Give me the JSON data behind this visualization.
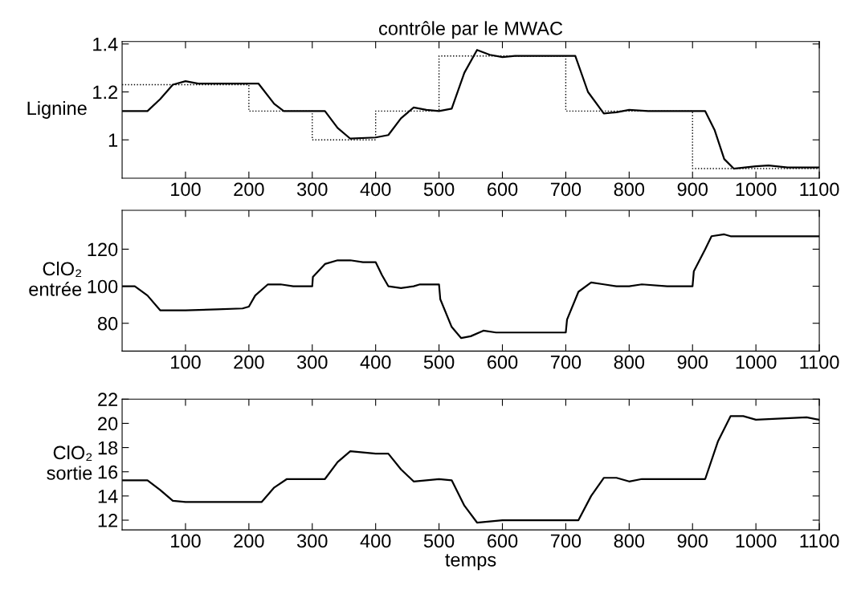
{
  "chart_data": [
    {
      "type": "line",
      "title": "contrôle par le MWAC",
      "ylabel": "Lignine",
      "xlim": [
        0,
        1100
      ],
      "xticks": [
        100,
        200,
        300,
        400,
        500,
        600,
        700,
        800,
        900,
        1000,
        1100
      ],
      "ylim": [
        0.84,
        1.41
      ],
      "yticks": [
        1,
        1.2,
        1.4
      ],
      "grid": false,
      "legend": false,
      "series": [
        {
          "color": "#000000",
          "line_style": "solid",
          "x": [
            0,
            40,
            60,
            80,
            100,
            120,
            200,
            215,
            240,
            255,
            280,
            320,
            340,
            360,
            400,
            420,
            440,
            460,
            480,
            500,
            520,
            540,
            560,
            580,
            600,
            620,
            700,
            715,
            735,
            760,
            780,
            800,
            830,
            900,
            920,
            935,
            950,
            965,
            1000,
            1020,
            1050,
            1100
          ],
          "values": [
            1.12,
            1.12,
            1.17,
            1.23,
            1.245,
            1.235,
            1.235,
            1.235,
            1.15,
            1.12,
            1.12,
            1.12,
            1.05,
            1.005,
            1.01,
            1.02,
            1.09,
            1.135,
            1.125,
            1.12,
            1.13,
            1.28,
            1.375,
            1.355,
            1.345,
            1.35,
            1.35,
            1.35,
            1.2,
            1.11,
            1.115,
            1.125,
            1.12,
            1.12,
            1.12,
            1.04,
            0.92,
            0.88,
            0.89,
            0.893,
            0.885,
            0.885
          ]
        },
        {
          "color": "#000000",
          "line_style": "dotted",
          "x": [
            0,
            200,
            200,
            300,
            300,
            400,
            400,
            500,
            500,
            700,
            700,
            900,
            900,
            1100
          ],
          "values": [
            1.23,
            1.23,
            1.12,
            1.12,
            1.0,
            1.0,
            1.12,
            1.12,
            1.35,
            1.35,
            1.12,
            1.12,
            0.88,
            0.88
          ]
        }
      ]
    },
    {
      "type": "line",
      "ylabel": "ClO₂\nentrée",
      "xlim": [
        0,
        1100
      ],
      "xticks": [
        100,
        200,
        300,
        400,
        500,
        600,
        700,
        800,
        900,
        1000,
        1100
      ],
      "ylim": [
        65,
        141
      ],
      "yticks": [
        80,
        100,
        120
      ],
      "grid": false,
      "legend": false,
      "series": [
        {
          "color": "#000000",
          "line_style": "solid",
          "x": [
            0,
            20,
            40,
            60,
            100,
            150,
            190,
            200,
            210,
            230,
            250,
            270,
            300,
            301,
            320,
            340,
            360,
            380,
            400,
            410,
            420,
            440,
            460,
            470,
            500,
            502,
            520,
            535,
            550,
            570,
            590,
            700,
            702,
            720,
            740,
            760,
            780,
            800,
            820,
            860,
            900,
            902,
            920,
            930,
            950,
            960,
            1100
          ],
          "values": [
            100,
            100,
            95,
            87,
            87,
            87.5,
            88,
            89,
            95,
            101,
            101,
            100,
            100,
            105,
            112,
            114,
            114,
            113,
            113,
            106,
            100,
            99,
            100,
            101,
            101,
            93,
            78,
            72,
            73,
            76,
            75,
            75,
            82,
            97,
            102,
            101,
            100,
            100,
            101,
            100,
            100,
            108,
            120,
            127,
            128,
            127,
            127
          ]
        }
      ]
    },
    {
      "type": "line",
      "ylabel": "ClO₂\nsortie",
      "xlabel": "temps",
      "xlim": [
        0,
        1100
      ],
      "xticks": [
        100,
        200,
        300,
        400,
        500,
        600,
        700,
        800,
        900,
        1000,
        1100
      ],
      "ylim": [
        11.2,
        22
      ],
      "yticks": [
        12,
        14,
        16,
        18,
        20,
        22
      ],
      "grid": false,
      "legend": false,
      "series": [
        {
          "color": "#000000",
          "line_style": "solid",
          "x": [
            0,
            40,
            60,
            80,
            100,
            220,
            240,
            260,
            280,
            320,
            340,
            360,
            380,
            400,
            420,
            440,
            460,
            480,
            500,
            520,
            540,
            560,
            580,
            600,
            720,
            740,
            760,
            780,
            800,
            820,
            920,
            940,
            960,
            980,
            1000,
            1040,
            1080,
            1100
          ],
          "values": [
            15.3,
            15.3,
            14.5,
            13.6,
            13.5,
            13.5,
            14.7,
            15.4,
            15.4,
            15.4,
            16.8,
            17.7,
            17.6,
            17.5,
            17.5,
            16.2,
            15.2,
            15.3,
            15.4,
            15.3,
            13.2,
            11.8,
            11.9,
            12.0,
            12.0,
            14.0,
            15.5,
            15.5,
            15.2,
            15.4,
            15.4,
            18.5,
            20.6,
            20.6,
            20.3,
            20.4,
            20.5,
            20.3
          ]
        }
      ]
    }
  ]
}
